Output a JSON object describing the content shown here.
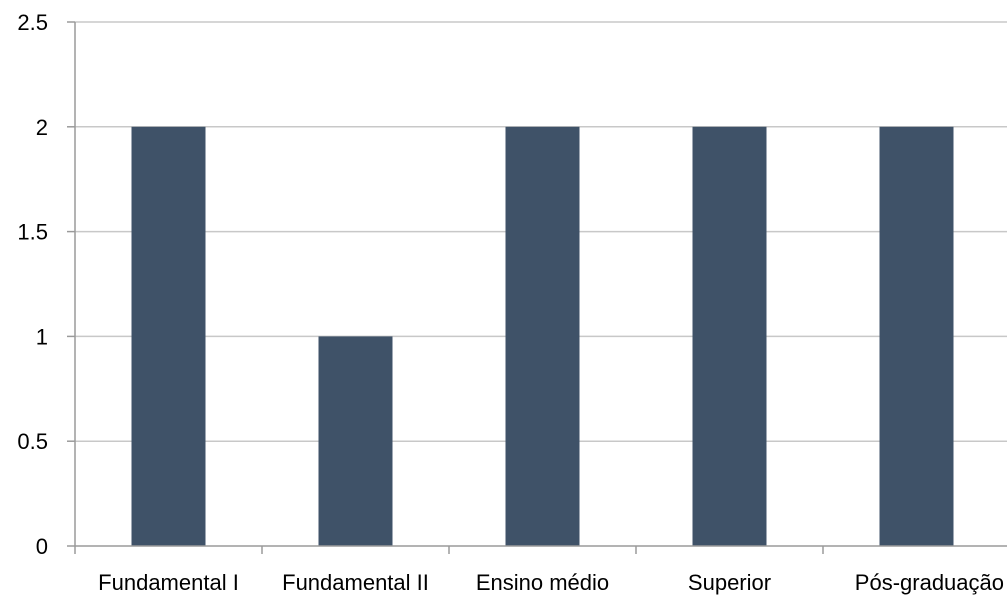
{
  "chart_data": {
    "type": "bar",
    "title": "",
    "xlabel": "",
    "ylabel": "",
    "categories": [
      "Fundamental I",
      "Fundamental II",
      "Ensino médio",
      "Superior",
      "Pós-graduação"
    ],
    "values": [
      2,
      1,
      2,
      2,
      2
    ],
    "ylim": [
      0,
      2.5
    ],
    "yticks": [
      "0",
      "0.5",
      "1",
      "1.5",
      "2",
      "2.5"
    ],
    "grid": true,
    "legend": "none",
    "bar_color": "#3f5268",
    "grid_color": "#c8c8c8",
    "axis_color": "#9a9a9a"
  }
}
